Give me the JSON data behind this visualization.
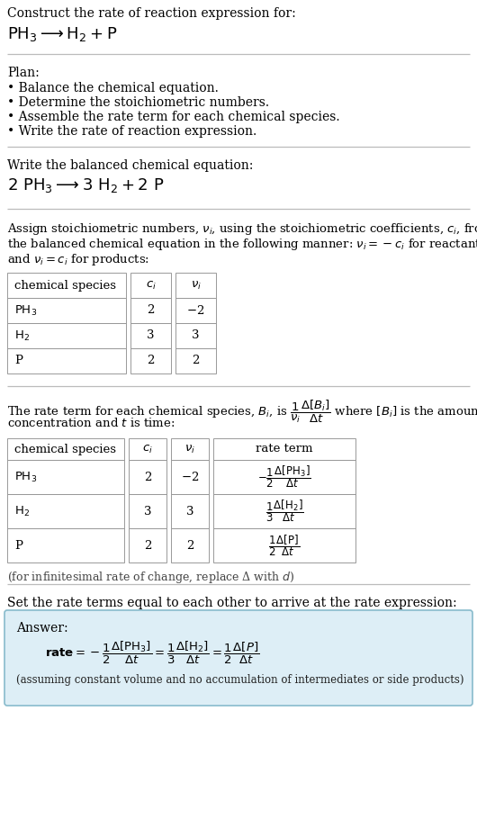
{
  "bg_color": "#ffffff",
  "answer_bg": "#ddeef6",
  "answer_border": "#88bbcc",
  "separator_color": "#bbbbbb",
  "title_line1": "Construct the rate of reaction expression for:",
  "plan_header": "Plan:",
  "plan_bullets": [
    "• Balance the chemical equation.",
    "• Determine the stoichiometric numbers.",
    "• Assemble the rate term for each chemical species.",
    "• Write the rate of reaction expression."
  ],
  "balanced_header": "Write the balanced chemical equation:",
  "stoich_intro": [
    "Assign stoichiometric numbers, $\\nu_i$, using the stoichiometric coefficients, $c_i$, from",
    "the balanced chemical equation in the following manner: $\\nu_i = -c_i$ for reactants",
    "and $\\nu_i = c_i$ for products:"
  ],
  "table1_headers": [
    "chemical species",
    "$c_i$",
    "$\\nu_i$"
  ],
  "table1_data": [
    [
      "$\\mathrm{PH_3}$",
      "2",
      "$-$2"
    ],
    [
      "$\\mathrm{H_2}$",
      "3",
      "3"
    ],
    [
      "P",
      "2",
      "2"
    ]
  ],
  "rate_intro": [
    "The rate term for each chemical species, $B_i$, is $\\dfrac{1}{\\nu_i}\\dfrac{\\Delta[B_i]}{\\Delta t}$ where $[B_i]$ is the amount",
    "concentration and $t$ is time:"
  ],
  "table2_headers": [
    "chemical species",
    "$c_i$",
    "$\\nu_i$",
    "rate term"
  ],
  "table2_data": [
    [
      "$\\mathrm{PH_3}$",
      "2",
      "$-$2",
      "$-\\dfrac{1}{2}\\dfrac{\\Delta[\\mathrm{PH_3}]}{\\Delta t}$"
    ],
    [
      "$\\mathrm{H_2}$",
      "3",
      "3",
      "$\\dfrac{1}{3}\\dfrac{\\Delta[\\mathrm{H_2}]}{\\Delta t}$"
    ],
    [
      "P",
      "2",
      "2",
      "$\\dfrac{1}{2}\\dfrac{\\Delta[\\mathrm{P}]}{\\Delta t}$"
    ]
  ],
  "delta_note": "(for infinitesimal rate of change, replace Δ with $d$)",
  "set_equal_text": "Set the rate terms equal to each other to arrive at the rate expression:",
  "answer_label": "Answer:",
  "assuming_note": "(assuming constant volume and no accumulation of intermediates or side products)"
}
